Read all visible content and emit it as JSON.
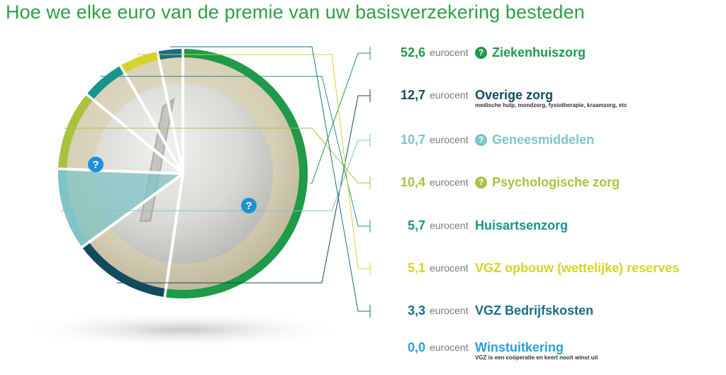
{
  "title": "Hoe we elke euro van de premie van uw basisverzekering besteden",
  "unit": "eurocent",
  "help_glyph": "?",
  "colors": {
    "ziekenhuis": "#1e9a48",
    "overige": "#124a5e",
    "genees": "#7fc4c6",
    "psych": "#a9c23f",
    "huisarts": "#17948c",
    "reserves": "#d5d42c",
    "bedrijf": "#1a6d86",
    "winst": "#2a9fd6",
    "help": "#1e90d6"
  },
  "chart_data": {
    "type": "pie",
    "series": [
      {
        "value": "52,6",
        "v": 52.6,
        "label": "Ziekenhuiszorg",
        "color": "#1e9a48",
        "help": true
      },
      {
        "value": "12,7",
        "v": 12.7,
        "label": "Overige zorg",
        "sub": "medische hulp, mondzorg, fysiotherapie, kraamzorg, etc",
        "color": "#124a5e"
      },
      {
        "value": "10,7",
        "v": 10.7,
        "label": "Geneesmiddelen",
        "color": "#7fc4c6",
        "help": true
      },
      {
        "value": "10,4",
        "v": 10.4,
        "label": "Psychologische zorg",
        "color": "#a9c23f",
        "help": true
      },
      {
        "value": "5,7",
        "v": 5.7,
        "label": "Huisartsenzorg",
        "color": "#17948c"
      },
      {
        "value": "5,1",
        "v": 5.1,
        "label": "VGZ opbouw (wettelijke) reserves",
        "color": "#d5d42c"
      },
      {
        "value": "3,3",
        "v": 3.3,
        "label": "VGZ Bedrijfskosten",
        "color": "#1a6d86"
      },
      {
        "value": "0,0",
        "v": 0.0,
        "label": "Winstuitkering",
        "sub": "VGZ is een coöperatie en keert nooit winst uit",
        "color": "#2a9fd6"
      }
    ]
  }
}
